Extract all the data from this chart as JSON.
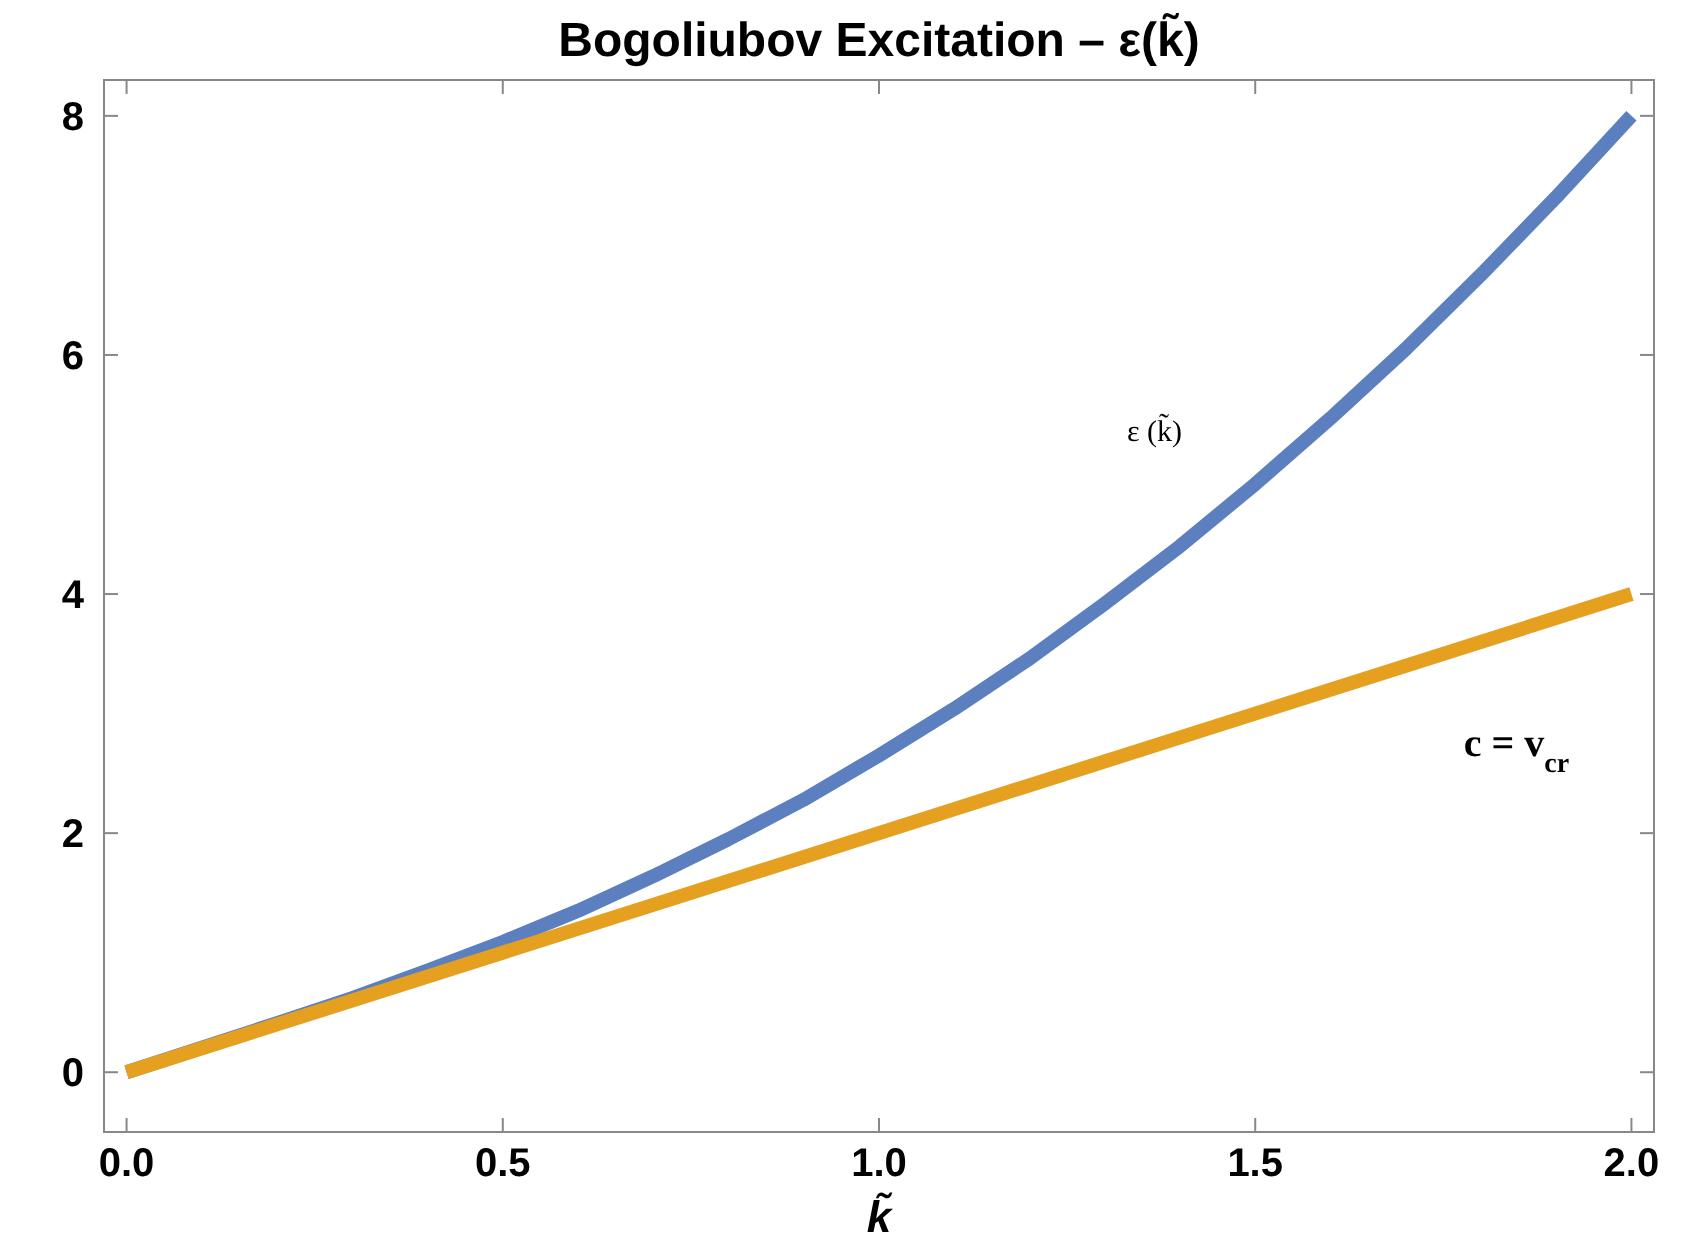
{
  "chart_data": {
    "type": "line",
    "title": "Bogoliubov Excitation – ε(k̃)",
    "xlabel": "k̃",
    "xlim": [
      -0.03,
      2.03
    ],
    "ylim": [
      -0.5,
      8.3
    ],
    "xticks": [
      {
        "value": 0,
        "label": "0.0"
      },
      {
        "value": 0.5,
        "label": "0.5"
      },
      {
        "value": 1,
        "label": "1.0"
      },
      {
        "value": 1.5,
        "label": "1.5"
      },
      {
        "value": 2,
        "label": "2.0"
      }
    ],
    "yticks": [
      0,
      2,
      4,
      6,
      8
    ],
    "grid": false,
    "series": [
      {
        "name": "ε (k̃)",
        "color": "#5b7fbf",
        "x": [
          0,
          0.2,
          0.3,
          0.4,
          0.5,
          0.6,
          0.7,
          0.8,
          0.9,
          1.0,
          1.1,
          1.2,
          1.3,
          1.4,
          1.5,
          1.6,
          1.7,
          1.8,
          1.9,
          2.0
        ],
        "values": [
          0,
          0.41,
          0.62,
          0.85,
          1.09,
          1.35,
          1.64,
          1.95,
          2.28,
          2.65,
          3.04,
          3.46,
          3.92,
          4.4,
          4.92,
          5.47,
          6.05,
          6.67,
          7.32,
          8
        ]
      },
      {
        "name": "c = v$_{cr}$",
        "color": "#e6a020",
        "x": [
          0,
          2
        ],
        "values": [
          0,
          4
        ]
      }
    ]
  }
}
